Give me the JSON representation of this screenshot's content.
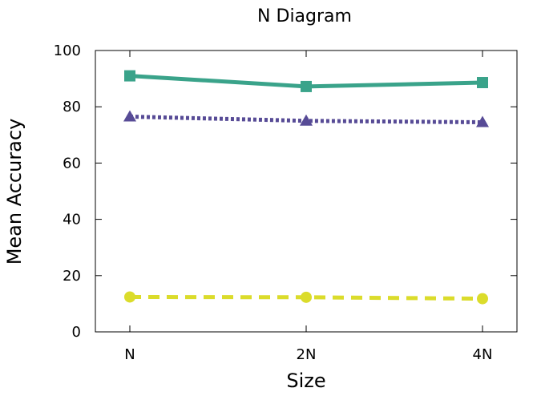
{
  "chart_data": {
    "type": "line",
    "title": "N Diagram",
    "xlabel": "Size",
    "ylabel": "Mean Accuracy",
    "categories": [
      "N",
      "2N",
      "4N"
    ],
    "ylim": [
      0,
      100
    ],
    "yticks": [
      0,
      20,
      40,
      60,
      80,
      100
    ],
    "grid": false,
    "legend": "none",
    "series": [
      {
        "values": [
          91,
          87.2,
          88.6
        ],
        "color": "#3aa38a",
        "marker": "square",
        "dash": "solid"
      },
      {
        "values": [
          76.5,
          75,
          74.5
        ],
        "color": "#574b96",
        "marker": "triangle",
        "dash": "dotted"
      },
      {
        "values": [
          12.4,
          12.3,
          11.8
        ],
        "color": "#dbdc2b",
        "marker": "circle",
        "dash": "dashed"
      }
    ]
  }
}
